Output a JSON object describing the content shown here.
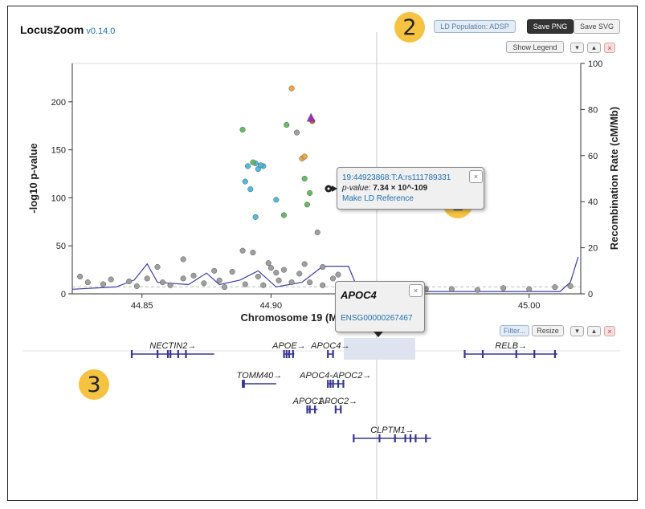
{
  "app": {
    "title": "LocusZoom",
    "version": "v0.14.0"
  },
  "toolbar": {
    "ld_population_label": "LD Population: ADSP",
    "save_png_label": "Save PNG",
    "save_svg_label": "Save SVG",
    "show_legend_label": "Show Legend",
    "move_up_symbol": "▴",
    "move_down_symbol": "▾",
    "remove_symbol": "×"
  },
  "callouts": {
    "one": "1",
    "two": "2",
    "three": "3"
  },
  "variant_tooltip": {
    "variant_id": "19:44923868:T:A:rs111789331",
    "pvalue_label": "p-value:",
    "pvalue_value": "7.34 × 10^-109",
    "make_ld_reference": "Make LD Reference",
    "close": "×"
  },
  "gene_tooltip": {
    "gene_name": "APOC4",
    "ensembl_id": "ENSG00000267467",
    "close": "×"
  },
  "gene_panel_toolbar": {
    "filter_label": "Filter...",
    "resize_label": "Resize"
  },
  "axes": {
    "x_label": "Chromosome 19 (Mb)",
    "y_left_label": "-log10 p-value",
    "y_right_label": "Recombination Rate (cM/Mb)",
    "x_ticks": [
      "44.85",
      "44.90",
      "44.95",
      "45.00"
    ],
    "y_left_ticks": [
      "0",
      "50",
      "100",
      "150",
      "200"
    ],
    "y_right_ticks": [
      "0",
      "20",
      "40",
      "60",
      "80",
      "100"
    ]
  },
  "chart_data": {
    "type": "scatter",
    "xlabel": "Chromosome 19 (Mb)",
    "ylabel": "-log10 p-value",
    "y2label": "Recombination Rate (cM/Mb)",
    "xlim": [
      44.823,
      45.02
    ],
    "ylim": [
      0,
      240
    ],
    "y2lim": [
      0,
      100
    ],
    "colors": {
      "ld_high": "#d43f3a",
      "ld_mid_high": "#eea236",
      "ld_mid": "#5cb85c",
      "ld_low": "#46b8da",
      "ld_lowest": "#357ebd",
      "ld_none": "#9a9a9a",
      "index": "#9632b8",
      "recomb_line": "#3b3ea8",
      "gene": "#363696"
    },
    "series": [
      {
        "name": "ld_high",
        "points": [
          [
            44.916,
            180
          ]
        ]
      },
      {
        "name": "index",
        "points": [
          [
            44.9155,
            183
          ]
        ]
      },
      {
        "name": "ld_mid_high",
        "points": [
          [
            44.908,
            214
          ],
          [
            44.912,
            141
          ],
          [
            44.913,
            143
          ]
        ]
      },
      {
        "name": "ld_mid",
        "points": [
          [
            44.889,
            171
          ],
          [
            44.906,
            176
          ],
          [
            44.893,
            137
          ],
          [
            44.913,
            120
          ],
          [
            44.915,
            105
          ],
          [
            44.914,
            93
          ],
          [
            44.905,
            82
          ]
        ]
      },
      {
        "name": "ld_low",
        "points": [
          [
            44.891,
            133
          ],
          [
            44.894,
            136
          ],
          [
            44.895,
            130
          ],
          [
            44.897,
            133
          ],
          [
            44.89,
            117
          ],
          [
            44.892,
            109
          ],
          [
            44.896,
            134
          ],
          [
            44.902,
            98
          ],
          [
            44.894,
            80
          ],
          [
            44.928,
            99
          ]
        ]
      },
      {
        "name": "ld_none",
        "points": [
          [
            44.91,
            168
          ],
          [
            44.918,
            64
          ],
          [
            44.866,
            36
          ],
          [
            44.893,
            43
          ],
          [
            44.856,
            28
          ],
          [
            44.9,
            27
          ],
          [
            44.902,
            22
          ],
          [
            44.92,
            28
          ],
          [
            44.913,
            31
          ],
          [
            44.899,
            32
          ],
          [
            44.889,
            45
          ],
          [
            44.878,
            24
          ],
          [
            44.885,
            23
          ],
          [
            44.895,
            18
          ],
          [
            44.905,
            25
          ],
          [
            44.911,
            21
          ],
          [
            44.87,
            19
          ],
          [
            44.852,
            16
          ],
          [
            44.845,
            13
          ],
          [
            44.835,
            10
          ],
          [
            44.829,
            12
          ],
          [
            44.88,
            14
          ],
          [
            44.926,
            20
          ],
          [
            44.924,
            16
          ],
          [
            44.874,
            11
          ],
          [
            44.861,
            9
          ],
          [
            44.908,
            12
          ],
          [
            44.931,
            7
          ],
          [
            44.95,
            5
          ],
          [
            44.97,
            5
          ],
          [
            44.99,
            6
          ],
          [
            45.01,
            7
          ],
          [
            45.016,
            8
          ],
          [
            44.826,
            18
          ],
          [
            44.838,
            15
          ],
          [
            44.848,
            8
          ],
          [
            44.858,
            12
          ],
          [
            44.866,
            16
          ],
          [
            44.882,
            7
          ],
          [
            44.89,
            10
          ],
          [
            44.897,
            9
          ],
          [
            44.903,
            14
          ],
          [
            44.915,
            12
          ],
          [
            44.92,
            9
          ],
          [
            44.935,
            6
          ],
          [
            44.945,
            4
          ],
          [
            44.96,
            5
          ],
          [
            44.98,
            4
          ],
          [
            45.0,
            5
          ]
        ]
      }
    ],
    "recombination": [
      [
        44.823,
        2
      ],
      [
        44.84,
        3
      ],
      [
        44.847,
        6
      ],
      [
        44.852,
        13
      ],
      [
        44.856,
        5
      ],
      [
        44.868,
        4
      ],
      [
        44.875,
        9
      ],
      [
        44.88,
        4
      ],
      [
        44.888,
        6
      ],
      [
        44.895,
        10
      ],
      [
        44.902,
        3
      ],
      [
        44.912,
        5
      ],
      [
        44.92,
        12
      ],
      [
        44.93,
        12
      ],
      [
        44.934,
        1
      ],
      [
        44.96,
        1
      ],
      [
        44.99,
        1
      ],
      [
        45.012,
        1
      ],
      [
        45.016,
        5
      ],
      [
        45.019,
        16
      ]
    ],
    "genes": [
      {
        "name": "NECTIN2→",
        "start": 44.846,
        "end": 44.878,
        "row": 0,
        "exons": [
          44.846,
          44.856,
          44.86,
          44.861,
          44.864,
          44.867
        ]
      },
      {
        "name": "APOE→",
        "start": 44.905,
        "end": 44.909,
        "row": 0,
        "exons": [
          44.905,
          44.906,
          44.907,
          44.9085
        ]
      },
      {
        "name": "APOC4→",
        "start": 44.922,
        "end": 44.924,
        "row": 0,
        "exons": [
          44.922,
          44.924
        ],
        "highlight": true
      },
      {
        "name": "RELB→",
        "start": 44.975,
        "end": 45.011,
        "row": 0,
        "exons": [
          44.975,
          44.982,
          44.995,
          45.002,
          45.01
        ]
      },
      {
        "name": "TOMM40→",
        "start": 44.889,
        "end": 44.902,
        "row": 1,
        "exons": [
          44.889,
          44.8895
        ]
      },
      {
        "name": "APOC4-APOC2→",
        "start": 44.922,
        "end": 44.928,
        "row": 1,
        "exons": [
          44.922,
          44.923,
          44.924,
          44.926,
          44.928
        ]
      },
      {
        "name": "APOC1→",
        "start": 44.914,
        "end": 44.918,
        "row": 2,
        "exons": [
          44.914,
          44.915,
          44.917
        ]
      },
      {
        "name": "APOC2→",
        "start": 44.925,
        "end": 44.927,
        "row": 2,
        "exons": [
          44.925,
          44.927
        ]
      },
      {
        "name": "CLPTM1→",
        "start": 44.932,
        "end": 44.962,
        "row": 3,
        "exons": [
          44.932,
          44.942,
          44.948,
          44.952,
          44.954,
          44.956,
          44.96
        ]
      }
    ]
  }
}
